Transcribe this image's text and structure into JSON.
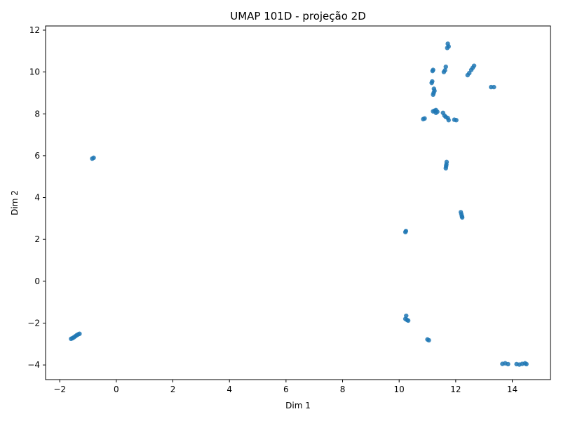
{
  "chart_data": {
    "type": "scatter",
    "title": "UMAP 101D - projeção 2D",
    "xlabel": "Dim 1",
    "ylabel": "Dim 2",
    "xlim": [
      -2.5,
      15.35
    ],
    "ylim": [
      -4.7,
      12.2
    ],
    "xticks": [
      -2,
      0,
      2,
      4,
      6,
      8,
      10,
      12,
      14
    ],
    "yticks": [
      -4,
      -2,
      0,
      2,
      4,
      6,
      8,
      10,
      12
    ],
    "xtick_labels": [
      "−2",
      "0",
      "2",
      "4",
      "6",
      "8",
      "10",
      "12",
      "14"
    ],
    "ytick_labels": [
      "−4",
      "−2",
      "0",
      "2",
      "4",
      "6",
      "8",
      "10",
      "12"
    ],
    "grid": false,
    "color": "#1f77b4",
    "points": [
      [
        -1.6,
        -2.75
      ],
      [
        -1.55,
        -2.72
      ],
      [
        -1.5,
        -2.68
      ],
      [
        -1.45,
        -2.63
      ],
      [
        -1.4,
        -2.58
      ],
      [
        -1.35,
        -2.54
      ],
      [
        -1.3,
        -2.51
      ],
      [
        -0.85,
        5.86
      ],
      [
        -0.8,
        5.9
      ],
      [
        10.22,
        2.35
      ],
      [
        10.24,
        2.4
      ],
      [
        10.25,
        -1.65
      ],
      [
        10.22,
        -1.8
      ],
      [
        10.28,
        -1.85
      ],
      [
        10.32,
        -1.88
      ],
      [
        11.0,
        -2.78
      ],
      [
        11.05,
        -2.82
      ],
      [
        10.85,
        7.75
      ],
      [
        10.9,
        7.78
      ],
      [
        11.2,
        8.12
      ],
      [
        11.25,
        8.15
      ],
      [
        11.3,
        8.18
      ],
      [
        11.35,
        8.1
      ],
      [
        11.3,
        8.05
      ],
      [
        11.2,
        8.92
      ],
      [
        11.22,
        9.0
      ],
      [
        11.25,
        9.1
      ],
      [
        11.23,
        9.2
      ],
      [
        11.15,
        9.48
      ],
      [
        11.17,
        9.55
      ],
      [
        11.18,
        10.05
      ],
      [
        11.2,
        10.1
      ],
      [
        11.58,
        10.0
      ],
      [
        11.62,
        10.08
      ],
      [
        11.65,
        10.25
      ],
      [
        11.7,
        11.15
      ],
      [
        11.75,
        11.22
      ],
      [
        11.72,
        11.35
      ],
      [
        11.55,
        8.05
      ],
      [
        11.6,
        7.92
      ],
      [
        11.65,
        7.85
      ],
      [
        11.72,
        7.8
      ],
      [
        11.75,
        7.7
      ],
      [
        11.95,
        7.72
      ],
      [
        12.02,
        7.7
      ],
      [
        11.65,
        5.4
      ],
      [
        11.66,
        5.5
      ],
      [
        11.67,
        5.58
      ],
      [
        11.68,
        5.7
      ],
      [
        12.18,
        3.3
      ],
      [
        12.2,
        3.2
      ],
      [
        12.22,
        3.1
      ],
      [
        12.23,
        3.05
      ],
      [
        12.42,
        9.85
      ],
      [
        12.48,
        9.95
      ],
      [
        12.55,
        10.1
      ],
      [
        12.6,
        10.2
      ],
      [
        12.65,
        10.3
      ],
      [
        13.25,
        9.28
      ],
      [
        13.35,
        9.28
      ],
      [
        13.65,
        -3.95
      ],
      [
        13.75,
        -3.92
      ],
      [
        13.85,
        -3.96
      ],
      [
        14.15,
        -3.96
      ],
      [
        14.25,
        -3.98
      ],
      [
        14.35,
        -3.95
      ],
      [
        14.45,
        -3.92
      ],
      [
        14.5,
        -3.96
      ]
    ]
  }
}
